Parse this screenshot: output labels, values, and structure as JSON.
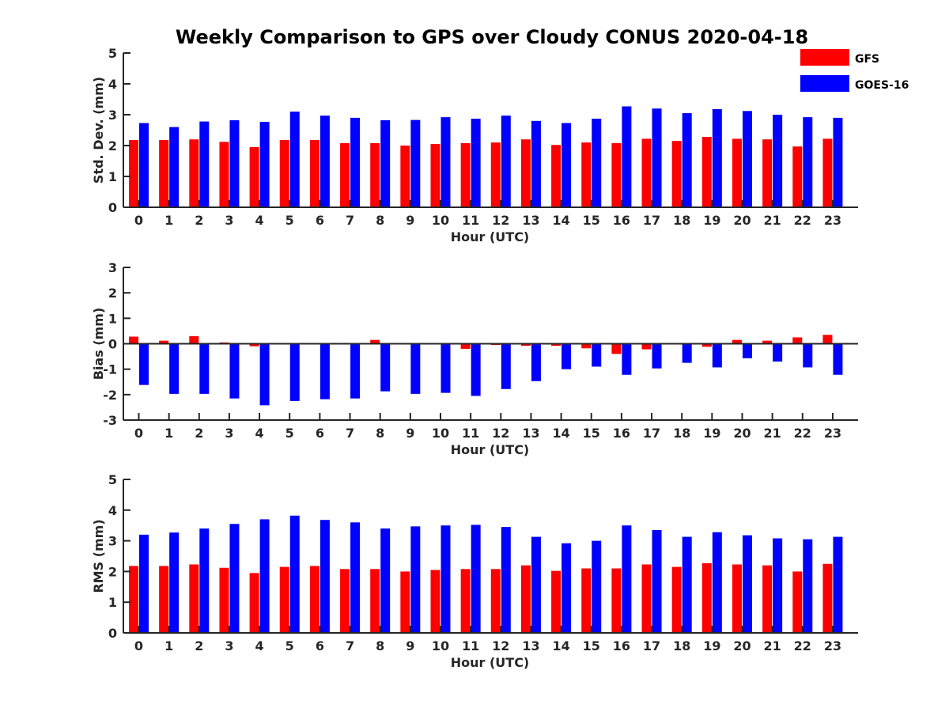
{
  "figure_title": "Weekly Comparison to GPS over Cloudy CONUS 2020-04-18",
  "legend": [
    {
      "label": "GFS",
      "color": "#ff0000"
    },
    {
      "label": "GOES-16",
      "color": "#0000ff"
    }
  ],
  "chart_data": [
    {
      "type": "bar",
      "ylabel": "Std. Dev. (mm)",
      "xlabel": "Hour (UTC)",
      "ylim": [
        0,
        5
      ],
      "yticks": [
        0,
        1,
        2,
        3,
        4,
        5
      ],
      "categories": [
        "0",
        "1",
        "2",
        "3",
        "4",
        "5",
        "6",
        "7",
        "8",
        "9",
        "10",
        "11",
        "12",
        "13",
        "14",
        "15",
        "16",
        "17",
        "18",
        "19",
        "20",
        "21",
        "22",
        "23"
      ],
      "series": [
        {
          "name": "GFS",
          "color": "#ff0000",
          "values": [
            2.18,
            2.18,
            2.2,
            2.12,
            1.95,
            2.18,
            2.18,
            2.08,
            2.08,
            2.0,
            2.05,
            2.08,
            2.1,
            2.2,
            2.02,
            2.1,
            2.08,
            2.22,
            2.15,
            2.28,
            2.22,
            2.2,
            1.97,
            2.22
          ]
        },
        {
          "name": "GOES-16",
          "color": "#0000ff",
          "values": [
            2.73,
            2.6,
            2.78,
            2.82,
            2.77,
            3.1,
            2.97,
            2.9,
            2.82,
            2.83,
            2.92,
            2.87,
            2.97,
            2.8,
            2.73,
            2.87,
            3.27,
            3.2,
            3.05,
            3.18,
            3.12,
            3.0,
            2.92,
            2.9
          ]
        }
      ]
    },
    {
      "type": "bar",
      "ylabel": "Bias (mm)",
      "xlabel": "Hour (UTC)",
      "ylim": [
        -3,
        3
      ],
      "yticks": [
        -3,
        -2,
        -1,
        0,
        1,
        2,
        3
      ],
      "categories": [
        "0",
        "1",
        "2",
        "3",
        "4",
        "5",
        "6",
        "7",
        "8",
        "9",
        "10",
        "11",
        "12",
        "13",
        "14",
        "15",
        "16",
        "17",
        "18",
        "19",
        "20",
        "21",
        "22",
        "23"
      ],
      "series": [
        {
          "name": "GFS",
          "color": "#ff0000",
          "values": [
            0.28,
            0.12,
            0.3,
            0.05,
            -0.1,
            0.0,
            0.02,
            0.0,
            0.15,
            0.0,
            0.0,
            -0.2,
            -0.05,
            -0.08,
            -0.08,
            -0.18,
            -0.4,
            -0.22,
            0.0,
            -0.12,
            0.15,
            0.12,
            0.25,
            0.35
          ]
        },
        {
          "name": "GOES-16",
          "color": "#0000ff",
          "values": [
            -1.62,
            -1.97,
            -1.97,
            -2.15,
            -2.42,
            -2.25,
            -2.18,
            -2.15,
            -1.87,
            -1.97,
            -1.93,
            -2.05,
            -1.78,
            -1.47,
            -1.0,
            -0.9,
            -1.22,
            -0.97,
            -0.75,
            -0.93,
            -0.57,
            -0.7,
            -0.93,
            -1.22
          ]
        }
      ]
    },
    {
      "type": "bar",
      "ylabel": "RMS (mm)",
      "xlabel": "Hour (UTC)",
      "ylim": [
        0,
        5
      ],
      "yticks": [
        0,
        1,
        2,
        3,
        4,
        5
      ],
      "categories": [
        "0",
        "1",
        "2",
        "3",
        "4",
        "5",
        "6",
        "7",
        "8",
        "9",
        "10",
        "11",
        "12",
        "13",
        "14",
        "15",
        "16",
        "17",
        "18",
        "19",
        "20",
        "21",
        "22",
        "23"
      ],
      "series": [
        {
          "name": "GFS",
          "color": "#ff0000",
          "values": [
            2.18,
            2.18,
            2.23,
            2.12,
            1.95,
            2.15,
            2.18,
            2.08,
            2.08,
            2.0,
            2.05,
            2.08,
            2.08,
            2.2,
            2.02,
            2.1,
            2.1,
            2.23,
            2.15,
            2.27,
            2.23,
            2.2,
            2.0,
            2.25
          ]
        },
        {
          "name": "GOES-16",
          "color": "#0000ff",
          "values": [
            3.2,
            3.27,
            3.4,
            3.55,
            3.7,
            3.82,
            3.68,
            3.6,
            3.4,
            3.47,
            3.5,
            3.52,
            3.45,
            3.13,
            2.92,
            3.0,
            3.5,
            3.35,
            3.13,
            3.28,
            3.18,
            3.08,
            3.05,
            3.13
          ]
        }
      ]
    }
  ]
}
